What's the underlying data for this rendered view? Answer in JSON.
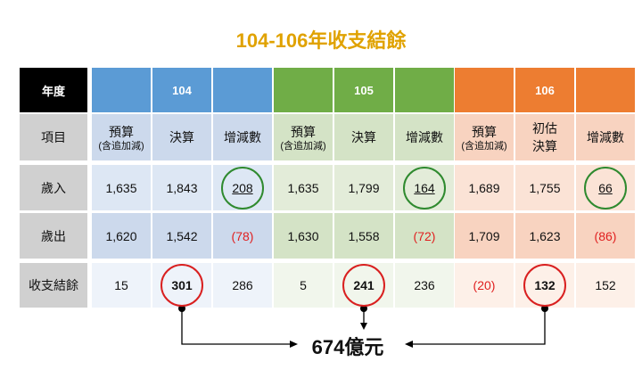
{
  "title": "104-106年收支結餘",
  "header_label": "年度",
  "row_labels": [
    "項目",
    "歲入",
    "歲出",
    "收支結餘"
  ],
  "years": [
    {
      "year": "104",
      "color": "#5b9bd5",
      "light": "#dde7f4",
      "mid": "#ccd9ec",
      "columns": [
        {
          "main": "預算",
          "sub": "(含追加減)"
        },
        {
          "main": "決算",
          "sub": ""
        },
        {
          "main": "增減數",
          "sub": ""
        }
      ],
      "revenue": [
        "1,635",
        "1,843",
        "208"
      ],
      "expense": [
        "1,620",
        "1,542",
        "(78)"
      ],
      "balance": [
        "15",
        "301",
        "286"
      ]
    },
    {
      "year": "105",
      "color": "#70ad47",
      "light": "#e3ecd9",
      "mid": "#d4e3c6",
      "columns": [
        {
          "main": "預算",
          "sub": "(含追加減)"
        },
        {
          "main": "決算",
          "sub": ""
        },
        {
          "main": "增減數",
          "sub": ""
        }
      ],
      "revenue": [
        "1,635",
        "1,799",
        "164"
      ],
      "expense": [
        "1,630",
        "1,558",
        "(72)"
      ],
      "balance": [
        "5",
        "241",
        "236"
      ]
    },
    {
      "year": "106",
      "color": "#ed7d31",
      "light": "#fbe3d6",
      "mid": "#f8d3c0",
      "columns": [
        {
          "main": "預算",
          "sub": "(含追加減)"
        },
        {
          "main": "初估",
          "sub": "決算"
        },
        {
          "main": "增減數",
          "sub": ""
        }
      ],
      "revenue": [
        "1,689",
        "1,755",
        "66"
      ],
      "expense": [
        "1,709",
        "1,623",
        "(86)"
      ],
      "balance": [
        "(20)",
        "132",
        "152"
      ]
    }
  ],
  "total": "674億元"
}
